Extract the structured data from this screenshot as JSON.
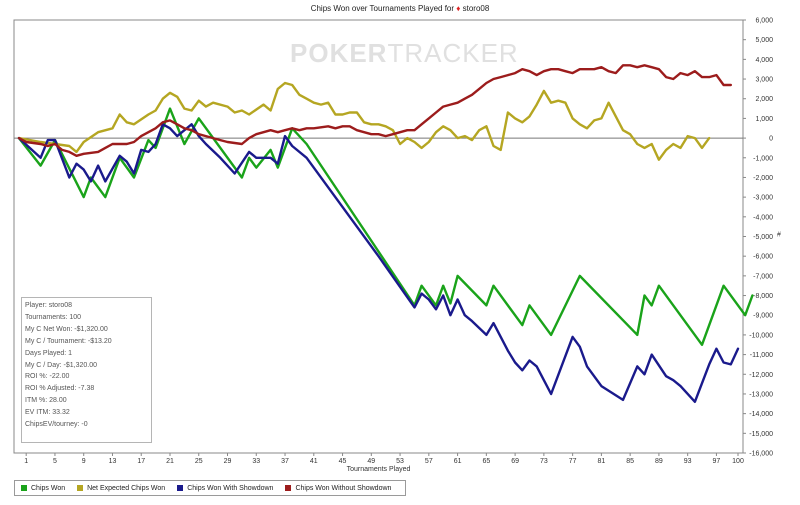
{
  "title": {
    "prefix": "Chips Won over Tournaments Played for",
    "suit_icon": "♦",
    "player": "storo08"
  },
  "watermark": {
    "bold": "POKER",
    "thin": "TRACKER"
  },
  "stats_panel": [
    "Player: storo08",
    "Tournaments: 100",
    "My C Net Won: -$1,320.00",
    "My C / Tournament: -$13.20",
    "Days Played: 1",
    "My C / Day: -$1,320.00",
    "ROI %: -22.00",
    "ROI % Adjusted: -7.38",
    "ITM %: 28.00",
    "EV ITM: 33.32",
    "ChipsEV/tourney: -0"
  ],
  "legend": [
    {
      "label": "Chips Won",
      "color": "#1aa31a"
    },
    {
      "label": "Net Expected Chips Won",
      "color": "#b5a622"
    },
    {
      "label": "Chips Won With Showdown",
      "color": "#1a1a8c"
    },
    {
      "label": "Chips Won Without Showdown",
      "color": "#9c1c1c"
    }
  ],
  "chart_data": {
    "type": "line",
    "title": "Chips Won over Tournaments Played for storo08",
    "xlabel": "Tournaments Played",
    "ylabel": "#",
    "x_ticks": [
      1,
      5,
      9,
      13,
      17,
      21,
      25,
      29,
      33,
      37,
      41,
      45,
      49,
      53,
      57,
      61,
      65,
      69,
      73,
      77,
      81,
      85,
      89,
      93,
      97,
      100
    ],
    "xlim": [
      0,
      100
    ],
    "y_ticks": [
      6000,
      5000,
      4000,
      3000,
      2000,
      1000,
      0,
      -1000,
      -2000,
      -3000,
      -4000,
      -5000,
      -6000,
      -7000,
      -8000,
      -9000,
      -10000,
      -11000,
      -12000,
      -13000,
      -14000,
      -15000,
      -16000
    ],
    "ylim": [
      -16000,
      6000
    ],
    "grid": false,
    "legend_position": "bottom",
    "series": [
      {
        "name": "Chips Won",
        "color": "#1aa31a",
        "points": [
          [
            0,
            0
          ],
          [
            3,
            -1400
          ],
          [
            5,
            -100
          ],
          [
            9,
            -3000
          ],
          [
            10,
            -2000
          ],
          [
            12,
            -3000
          ],
          [
            14,
            -1000
          ],
          [
            16,
            -2000
          ],
          [
            18,
            -100
          ],
          [
            19,
            -500
          ],
          [
            21,
            1500
          ],
          [
            23,
            -300
          ],
          [
            25,
            1000
          ],
          [
            31,
            -2000
          ],
          [
            32,
            -1000
          ],
          [
            33,
            -1500
          ],
          [
            35,
            -600
          ],
          [
            36,
            -1500
          ],
          [
            38,
            500
          ],
          [
            40,
            -300
          ],
          [
            55,
            -8500
          ],
          [
            56,
            -7500
          ],
          [
            58,
            -8500
          ],
          [
            59,
            -7500
          ],
          [
            60,
            -8400
          ],
          [
            61,
            -7000
          ],
          [
            65,
            -8500
          ],
          [
            66,
            -7500
          ],
          [
            70,
            -9500
          ],
          [
            71,
            -8500
          ],
          [
            74,
            -10000
          ],
          [
            78,
            -7000
          ],
          [
            86,
            -10000
          ],
          [
            87,
            -8000
          ],
          [
            88,
            -8500
          ],
          [
            89,
            -7500
          ],
          [
            95,
            -10500
          ],
          [
            98,
            -7500
          ],
          [
            101,
            -9000
          ],
          [
            102,
            -8000
          ]
        ]
      },
      {
        "name": "Net Expected Chips Won",
        "color": "#b5a622",
        "points": [
          [
            0,
            0
          ],
          [
            3,
            -200
          ],
          [
            5,
            -300
          ],
          [
            7,
            -400
          ],
          [
            8,
            -700
          ],
          [
            9,
            -200
          ],
          [
            11,
            300
          ],
          [
            13,
            500
          ],
          [
            14,
            1200
          ],
          [
            15,
            800
          ],
          [
            16,
            700
          ],
          [
            18,
            1200
          ],
          [
            19,
            1400
          ],
          [
            20,
            2000
          ],
          [
            21,
            2300
          ],
          [
            22,
            2100
          ],
          [
            23,
            1500
          ],
          [
            24,
            1400
          ],
          [
            25,
            1900
          ],
          [
            26,
            1600
          ],
          [
            27,
            1800
          ],
          [
            29,
            1600
          ],
          [
            30,
            1300
          ],
          [
            31,
            1400
          ],
          [
            32,
            1200
          ],
          [
            34,
            1700
          ],
          [
            35,
            1400
          ],
          [
            36,
            2500
          ],
          [
            37,
            2800
          ],
          [
            38,
            2700
          ],
          [
            39,
            2200
          ],
          [
            40,
            2000
          ],
          [
            41,
            1800
          ],
          [
            42,
            1700
          ],
          [
            43,
            1800
          ],
          [
            44,
            1200
          ],
          [
            45,
            1200
          ],
          [
            46,
            1300
          ],
          [
            47,
            1300
          ],
          [
            48,
            800
          ],
          [
            49,
            700
          ],
          [
            50,
            700
          ],
          [
            51,
            600
          ],
          [
            52,
            400
          ],
          [
            53,
            -300
          ],
          [
            54,
            0
          ],
          [
            55,
            -200
          ],
          [
            56,
            -500
          ],
          [
            57,
            -200
          ],
          [
            58,
            300
          ],
          [
            59,
            600
          ],
          [
            60,
            400
          ],
          [
            61,
            0
          ],
          [
            62,
            100
          ],
          [
            63,
            -100
          ],
          [
            64,
            400
          ],
          [
            65,
            600
          ],
          [
            66,
            -400
          ],
          [
            67,
            -600
          ],
          [
            68,
            1300
          ],
          [
            69,
            1000
          ],
          [
            70,
            800
          ],
          [
            71,
            1100
          ],
          [
            72,
            1700
          ],
          [
            73,
            2400
          ],
          [
            74,
            1800
          ],
          [
            75,
            1900
          ],
          [
            76,
            1800
          ],
          [
            77,
            1000
          ],
          [
            78,
            700
          ],
          [
            79,
            500
          ],
          [
            80,
            900
          ],
          [
            81,
            1000
          ],
          [
            82,
            1800
          ],
          [
            83,
            1100
          ],
          [
            84,
            400
          ],
          [
            85,
            200
          ],
          [
            86,
            -300
          ],
          [
            87,
            -500
          ],
          [
            88,
            -300
          ],
          [
            89,
            -1100
          ],
          [
            90,
            -600
          ],
          [
            91,
            -300
          ],
          [
            92,
            -500
          ],
          [
            93,
            100
          ],
          [
            94,
            0
          ],
          [
            95,
            -500
          ],
          [
            96,
            0
          ]
        ]
      },
      {
        "name": "Chips Won With Showdown",
        "color": "#1a1a8c",
        "points": [
          [
            0,
            0
          ],
          [
            3,
            -1000
          ],
          [
            4,
            -100
          ],
          [
            5,
            -100
          ],
          [
            7,
            -2000
          ],
          [
            8,
            -1300
          ],
          [
            9,
            -1600
          ],
          [
            10,
            -2200
          ],
          [
            11,
            -1400
          ],
          [
            12,
            -2200
          ],
          [
            14,
            -900
          ],
          [
            15,
            -1200
          ],
          [
            16,
            -1800
          ],
          [
            17,
            -600
          ],
          [
            18,
            -700
          ],
          [
            19,
            -300
          ],
          [
            20,
            700
          ],
          [
            21,
            500
          ],
          [
            22,
            100
          ],
          [
            23,
            400
          ],
          [
            24,
            700
          ],
          [
            25,
            100
          ],
          [
            26,
            -300
          ],
          [
            28,
            -1000
          ],
          [
            30,
            -1800
          ],
          [
            32,
            -700
          ],
          [
            33,
            -1000
          ],
          [
            35,
            -1000
          ],
          [
            36,
            -1300
          ],
          [
            37,
            100
          ],
          [
            38,
            -400
          ],
          [
            40,
            -1000
          ],
          [
            50,
            -6000
          ],
          [
            55,
            -8600
          ],
          [
            56,
            -7900
          ],
          [
            57,
            -8200
          ],
          [
            58,
            -8700
          ],
          [
            59,
            -8000
          ],
          [
            60,
            -9000
          ],
          [
            61,
            -8200
          ],
          [
            62,
            -9000
          ],
          [
            63,
            -9300
          ],
          [
            65,
            -10000
          ],
          [
            66,
            -9400
          ],
          [
            68,
            -10800
          ],
          [
            69,
            -11400
          ],
          [
            70,
            -11800
          ],
          [
            71,
            -11300
          ],
          [
            72,
            -11600
          ],
          [
            74,
            -13000
          ],
          [
            77,
            -10100
          ],
          [
            78,
            -10600
          ],
          [
            79,
            -11600
          ],
          [
            81,
            -12600
          ],
          [
            84,
            -13300
          ],
          [
            86,
            -11600
          ],
          [
            87,
            -12000
          ],
          [
            88,
            -11000
          ],
          [
            90,
            -12100
          ],
          [
            91,
            -12300
          ],
          [
            92,
            -12600
          ],
          [
            94,
            -13400
          ],
          [
            96,
            -11500
          ],
          [
            97,
            -10700
          ],
          [
            98,
            -11400
          ],
          [
            99,
            -11500
          ],
          [
            100,
            -10700
          ]
        ]
      },
      {
        "name": "Chips Won Without Showdown",
        "color": "#9c1c1c",
        "points": [
          [
            0,
            0
          ],
          [
            1,
            -200
          ],
          [
            3,
            -300
          ],
          [
            4,
            -400
          ],
          [
            5,
            -300
          ],
          [
            6,
            -600
          ],
          [
            7,
            -700
          ],
          [
            8,
            -900
          ],
          [
            9,
            -800
          ],
          [
            11,
            -700
          ],
          [
            12,
            -500
          ],
          [
            13,
            -300
          ],
          [
            15,
            -300
          ],
          [
            16,
            -200
          ],
          [
            17,
            100
          ],
          [
            18,
            300
          ],
          [
            19,
            500
          ],
          [
            20,
            800
          ],
          [
            21,
            900
          ],
          [
            22,
            700
          ],
          [
            23,
            500
          ],
          [
            24,
            400
          ],
          [
            25,
            200
          ],
          [
            26,
            100
          ],
          [
            27,
            0
          ],
          [
            28,
            -100
          ],
          [
            29,
            -200
          ],
          [
            31,
            -300
          ],
          [
            32,
            0
          ],
          [
            33,
            200
          ],
          [
            34,
            300
          ],
          [
            35,
            400
          ],
          [
            36,
            300
          ],
          [
            37,
            400
          ],
          [
            38,
            500
          ],
          [
            39,
            400
          ],
          [
            40,
            500
          ],
          [
            41,
            500
          ],
          [
            43,
            600
          ],
          [
            44,
            500
          ],
          [
            45,
            600
          ],
          [
            46,
            600
          ],
          [
            47,
            400
          ],
          [
            48,
            300
          ],
          [
            49,
            200
          ],
          [
            50,
            200
          ],
          [
            51,
            100
          ],
          [
            52,
            200
          ],
          [
            53,
            300
          ],
          [
            54,
            400
          ],
          [
            55,
            400
          ],
          [
            56,
            700
          ],
          [
            57,
            1000
          ],
          [
            58,
            1300
          ],
          [
            59,
            1600
          ],
          [
            60,
            1700
          ],
          [
            61,
            1800
          ],
          [
            62,
            2000
          ],
          [
            63,
            2200
          ],
          [
            64,
            2500
          ],
          [
            65,
            2800
          ],
          [
            66,
            3000
          ],
          [
            67,
            3100
          ],
          [
            68,
            3200
          ],
          [
            69,
            3300
          ],
          [
            70,
            3500
          ],
          [
            71,
            3400
          ],
          [
            72,
            3200
          ],
          [
            73,
            3400
          ],
          [
            74,
            3500
          ],
          [
            75,
            3500
          ],
          [
            76,
            3400
          ],
          [
            77,
            3300
          ],
          [
            78,
            3500
          ],
          [
            79,
            3500
          ],
          [
            80,
            3500
          ],
          [
            81,
            3600
          ],
          [
            82,
            3400
          ],
          [
            83,
            3300
          ],
          [
            84,
            3700
          ],
          [
            85,
            3700
          ],
          [
            86,
            3600
          ],
          [
            87,
            3700
          ],
          [
            88,
            3600
          ],
          [
            89,
            3500
          ],
          [
            90,
            3100
          ],
          [
            91,
            3000
          ],
          [
            92,
            3300
          ],
          [
            93,
            3200
          ],
          [
            94,
            3400
          ],
          [
            95,
            3100
          ],
          [
            96,
            3100
          ],
          [
            97,
            3200
          ],
          [
            98,
            2700
          ],
          [
            99,
            2700
          ]
        ]
      }
    ]
  }
}
